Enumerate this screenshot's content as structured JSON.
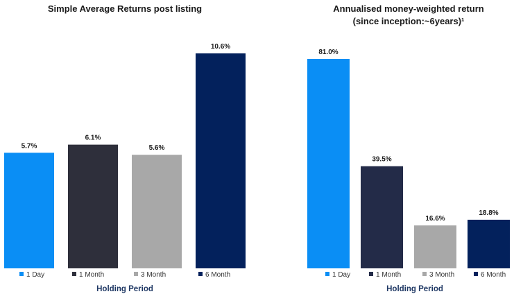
{
  "chart_data": [
    {
      "type": "bar",
      "title": "Simple Average Returns post listing",
      "subtitle": "",
      "xlabel": "Holding Period",
      "ylabel": "",
      "categories": [
        "1 Day",
        "1 Month",
        "3 Month",
        "6 Month"
      ],
      "values": [
        5.7,
        6.1,
        5.6,
        10.6
      ],
      "value_labels": [
        "5.7%",
        "6.1%",
        "5.6%",
        "10.6%"
      ],
      "colors": [
        "#0a8ef5",
        "#2e2f3b",
        "#a8a8a8",
        "#03215c"
      ],
      "ylim": [
        0,
        10.6
      ],
      "grid": false,
      "legend_position": "bottom"
    },
    {
      "type": "bar",
      "title": "Annualised money-weighted return",
      "subtitle": "(since inception:~6years)¹",
      "xlabel": "Holding Period",
      "ylabel": "",
      "categories": [
        "1 Day",
        "1 Month",
        "3 Month",
        "6 Month"
      ],
      "values": [
        81.0,
        39.5,
        16.6,
        18.8
      ],
      "value_labels": [
        "81.0%",
        "39.5%",
        "16.6%",
        "18.8%"
      ],
      "colors": [
        "#0a8ef5",
        "#232b48",
        "#a8a8a8",
        "#03215c"
      ],
      "ylim": [
        0,
        81.0
      ],
      "grid": false,
      "legend_position": "bottom"
    }
  ]
}
